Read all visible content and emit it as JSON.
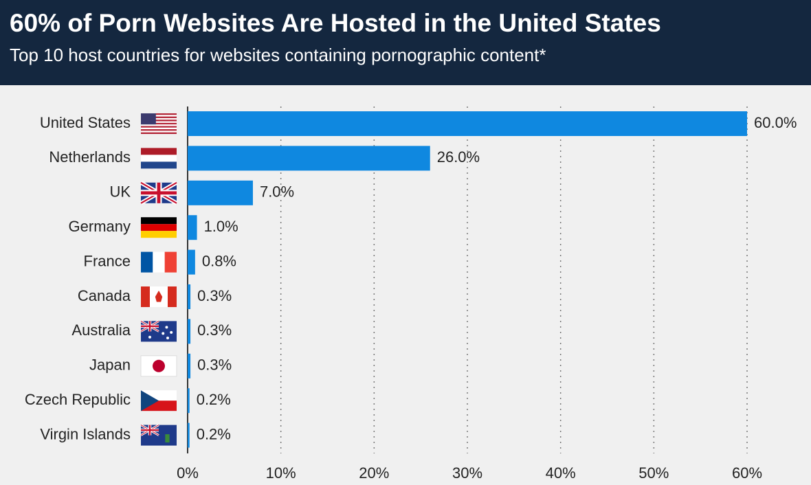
{
  "chart_data": {
    "type": "barh",
    "title": "60% of Porn Websites Are Hosted in the United States",
    "subtitle": "Top 10 host countries for websites containing pornographic content*",
    "categories": [
      "United States",
      "Netherlands",
      "UK",
      "Germany",
      "France",
      "Canada",
      "Australia",
      "Japan",
      "Czech Republic",
      "Virgin Islands"
    ],
    "values": [
      60,
      26,
      7,
      1,
      0.8,
      0.3,
      0.3,
      0.3,
      0.2,
      0.2
    ],
    "value_labels": [
      "60.0%",
      "26.0%",
      "7.0%",
      "1.0%",
      "0.8%",
      "0.3%",
      "0.3%",
      "0.3%",
      "0.2%",
      "0.2%"
    ],
    "color": "#0f88e0",
    "xlim": [
      0,
      60
    ],
    "xticks": [
      {
        "value": 0,
        "label": "0%"
      },
      {
        "value": 10,
        "label": "10%"
      },
      {
        "value": 20,
        "label": "20%"
      },
      {
        "value": 30,
        "label": "30%"
      },
      {
        "value": 40,
        "label": "40%"
      },
      {
        "value": 50,
        "label": "50%"
      },
      {
        "value": 60,
        "label": "60%"
      }
    ],
    "grid": true
  }
}
